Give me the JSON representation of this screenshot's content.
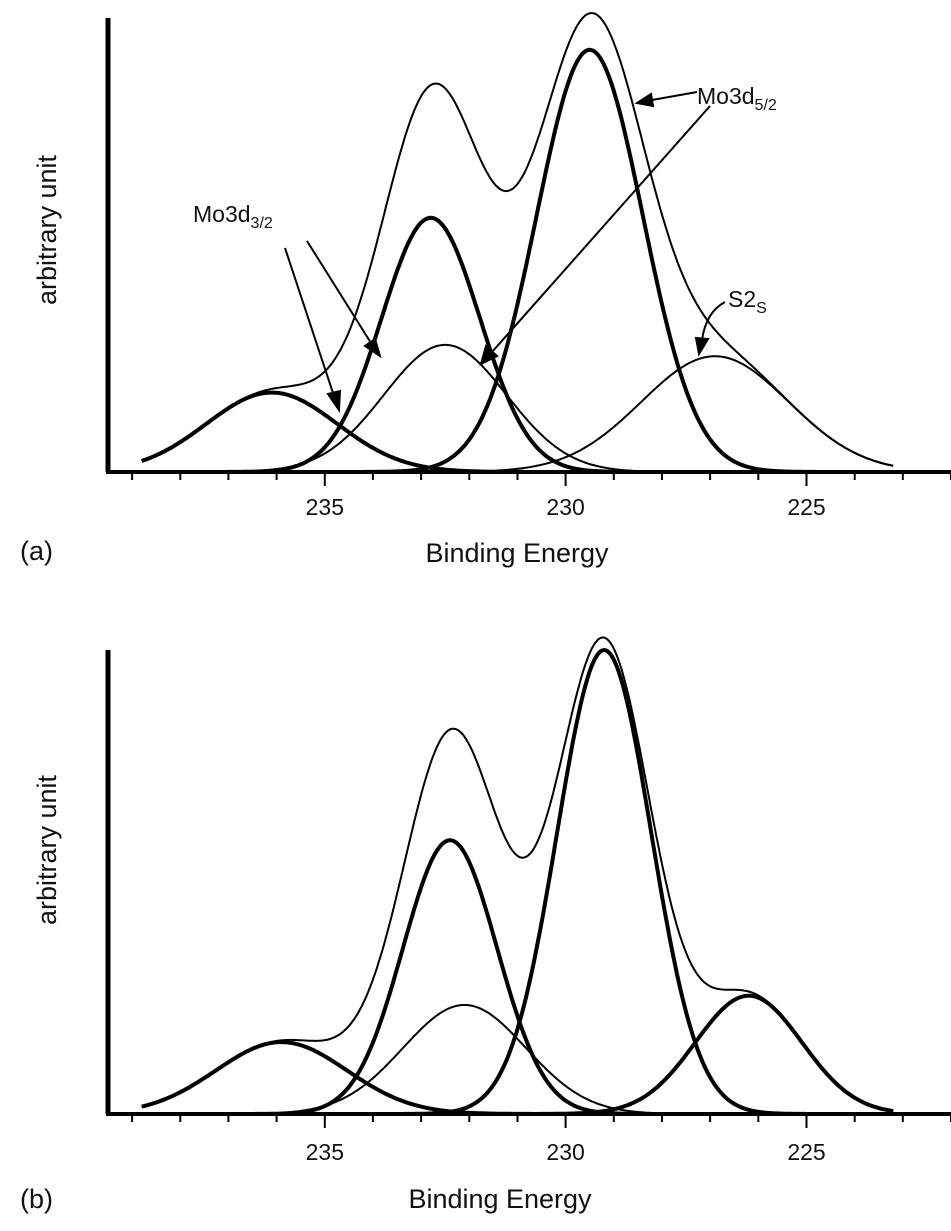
{
  "chart_data": [
    {
      "type": "line",
      "panel_label": "(a)",
      "xlabel": "Binding Energy",
      "ylabel": "arbitrary unit",
      "xlim": [
        239.5,
        222
      ],
      "ylim": [
        0,
        1.0
      ],
      "xticks": [
        235,
        230,
        225
      ],
      "grid": false,
      "annotations": {
        "mo3d32": {
          "base": "Mo3d",
          "sub": "3/2"
        },
        "mo3d52": {
          "base": "Mo3d",
          "sub": "5/2"
        },
        "s2s": {
          "base": "S2",
          "sub": "S"
        }
      },
      "series": [
        {
          "type": "gaussian",
          "center": 236.1,
          "height": 0.175,
          "fwhm": 3.2,
          "heavy": true
        },
        {
          "type": "gaussian",
          "center": 232.8,
          "height": 0.56,
          "fwhm": 2.4,
          "heavy": true
        },
        {
          "type": "gaussian",
          "center": 232.5,
          "height": 0.28,
          "fwhm": 3.0,
          "heavy": false
        },
        {
          "type": "gaussian",
          "center": 229.5,
          "height": 0.93,
          "fwhm": 2.6,
          "heavy": true
        },
        {
          "type": "gaussian",
          "center": 226.9,
          "height": 0.255,
          "fwhm": 3.6,
          "heavy": false
        },
        {
          "type": "envelope",
          "of": [
            0,
            1,
            2,
            3,
            4
          ],
          "heavy": false
        }
      ]
    },
    {
      "type": "line",
      "panel_label": "(b)",
      "xlabel": "Binding Energy",
      "ylabel": "arbitrary unit",
      "xlim": [
        239.5,
        222
      ],
      "ylim": [
        0,
        1.0
      ],
      "xticks": [
        235,
        230,
        225
      ],
      "grid": false,
      "series": [
        {
          "type": "gaussian",
          "center": 235.9,
          "height": 0.155,
          "fwhm": 3.2,
          "heavy": true
        },
        {
          "type": "gaussian",
          "center": 232.4,
          "height": 0.59,
          "fwhm": 2.3,
          "heavy": true
        },
        {
          "type": "gaussian",
          "center": 232.1,
          "height": 0.235,
          "fwhm": 3.0,
          "heavy": false
        },
        {
          "type": "gaussian",
          "center": 229.2,
          "height": 1.0,
          "fwhm": 2.3,
          "heavy": true
        },
        {
          "type": "gaussian",
          "center": 226.2,
          "height": 0.255,
          "fwhm": 2.6,
          "heavy": true
        },
        {
          "type": "envelope",
          "of": [
            0,
            1,
            2,
            3,
            4
          ],
          "heavy": false
        }
      ]
    }
  ]
}
